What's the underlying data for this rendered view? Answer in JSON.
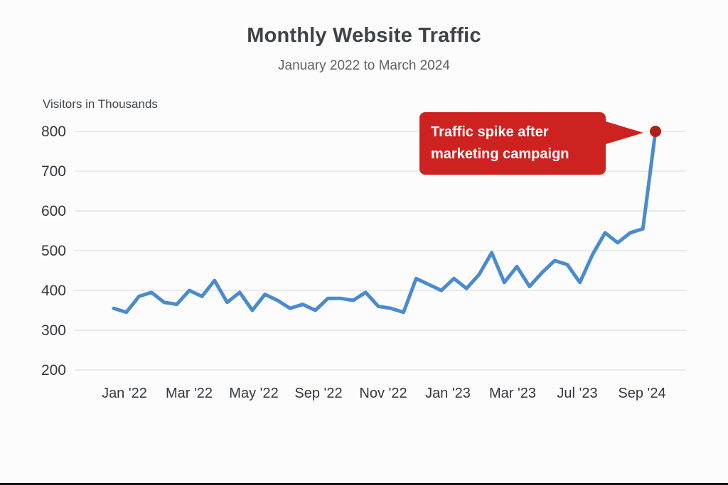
{
  "title": "Monthly Website Traffic",
  "subtitle": "January 2022 to March 2024",
  "axis_label": "Visitors in Thousands",
  "annotation": {
    "line1": "Traffic spike after",
    "line2": "marketing campaign"
  },
  "colors": {
    "line": "#4a8bd0",
    "annotation_bg": "#cd2220",
    "dot": "#b21f1b",
    "grid": "#e4e4e4",
    "title": "#3d4347",
    "subtitle": "#5d6267",
    "tick": "#34383c"
  },
  "chart_data": {
    "type": "line",
    "title": "Monthly Website Traffic",
    "subtitle": "January 2022 to March 2024",
    "xlabel": "",
    "ylabel": "Visitors in Thousands",
    "ylim": [
      200,
      800
    ],
    "yticks": [
      200,
      300,
      400,
      500,
      600,
      700,
      800
    ],
    "grid": true,
    "legend_position": "none",
    "x_tick_labels": [
      "Jan '22",
      "Mar '22",
      "May '22",
      "Sep '22",
      "Nov '22",
      "Jan '23",
      "Mar '23",
      "Jul '23",
      "Sep '24"
    ],
    "series": [
      {
        "name": "Visitors",
        "values": [
          355,
          345,
          385,
          395,
          370,
          365,
          400,
          385,
          425,
          370,
          395,
          350,
          390,
          375,
          355,
          365,
          350,
          380,
          380,
          375,
          395,
          360,
          355,
          345,
          430,
          415,
          400,
          430,
          405,
          440,
          495,
          420,
          460,
          410,
          445,
          475,
          465,
          420,
          490,
          545,
          520,
          545,
          555,
          800
        ]
      }
    ],
    "annotation": {
      "text": "Traffic spike after marketing campaign",
      "target_value": 800
    }
  }
}
